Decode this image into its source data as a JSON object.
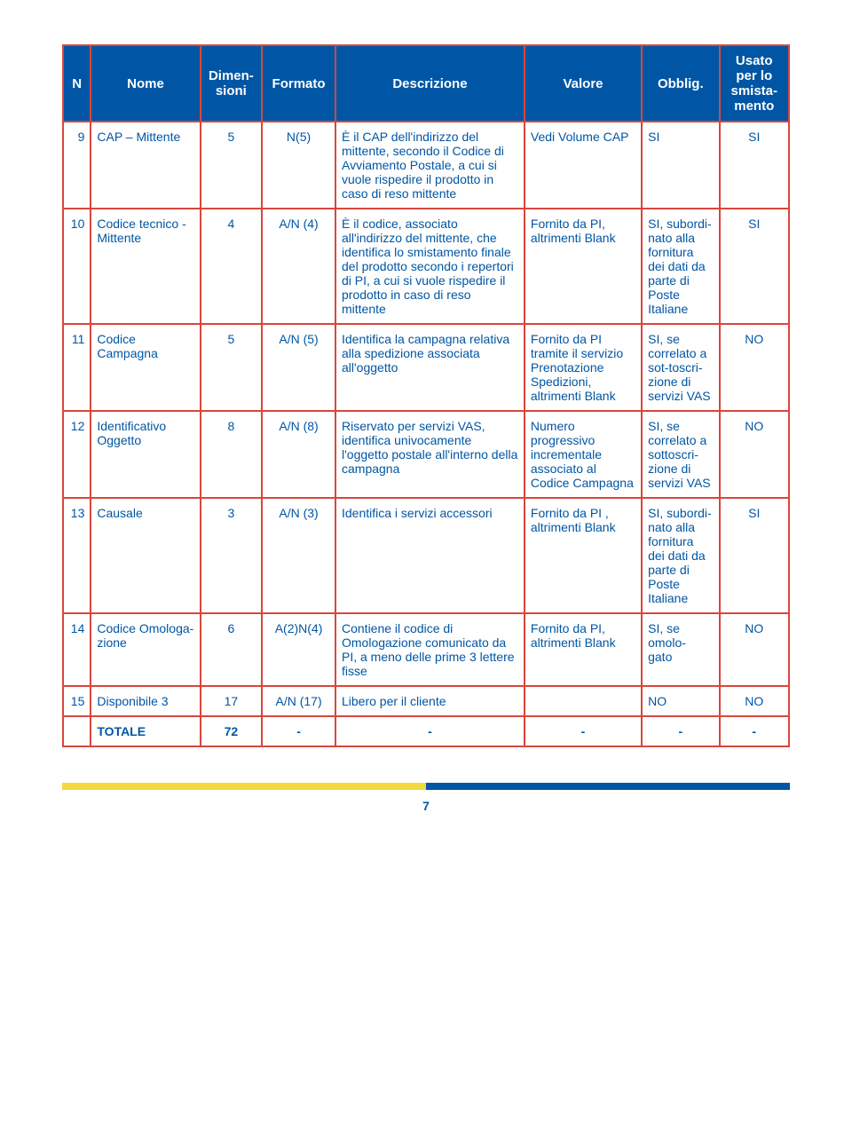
{
  "headers": {
    "n": "N",
    "nome": "Nome",
    "dimen": "Dimen-\nsioni",
    "formato": "Formato",
    "descrizione": "Descrizione",
    "valore": "Valore",
    "obblig": "Obblig.",
    "usato": "Usato per lo smista-\nmento"
  },
  "rows": [
    {
      "n": "9",
      "nome": "CAP – Mittente",
      "dim": "5",
      "fmt": "N(5)",
      "desc": "È il CAP dell'indirizzo del mittente, secondo il Codice di Avviamento Postale, a cui si vuole rispedire il prodotto in caso di reso mittente",
      "val": "Vedi Volume CAP",
      "obb": "SI",
      "usato": "SI"
    },
    {
      "n": "10",
      "nome": "Codice tecnico - Mittente",
      "dim": "4",
      "fmt": "A/N (4)",
      "desc": "È il codice, associato all'indirizzo del mittente, che identifica lo smistamento finale del prodotto secondo i repertori di PI, a cui si vuole rispedire il prodotto in caso di reso mittente",
      "val": "Fornito da PI, altrimenti Blank",
      "obb": "SI, subordi-\nnato alla fornitura dei dati da parte di Poste Italiane",
      "usato": "SI"
    },
    {
      "n": "11",
      "nome": "Codice Campagna",
      "dim": "5",
      "fmt": "A/N (5)",
      "desc": "Identifica la campagna relativa alla spedizione associata all'oggetto",
      "val": "Fornito da PI tramite il servizio Prenotazione Spedizioni, altrimenti Blank",
      "obb": "SI, se correlato a sot-toscri-\nzione di servizi VAS",
      "usato": "NO"
    },
    {
      "n": "12",
      "nome": "Identificativo Oggetto",
      "dim": "8",
      "fmt": "A/N (8)",
      "desc": "Riservato per servizi VAS, identifica univocamente l'oggetto postale all'interno della campagna",
      "val": "Numero progressivo incrementale associato al Codice Campagna",
      "obb": "SI, se correlato a sottoscri-\nzione di servizi VAS",
      "usato": "NO"
    },
    {
      "n": "13",
      "nome": "Causale",
      "dim": "3",
      "fmt": "A/N (3)",
      "desc": "Identifica i servizi accessori",
      "val": "Fornito da PI , altrimenti Blank",
      "obb": "SI, subordi-\nnato alla fornitura dei dati da parte di Poste Italiane",
      "usato": "SI"
    },
    {
      "n": "14",
      "nome": "Codice Omologa-\nzione",
      "dim": "6",
      "fmt": "A(2)N(4)",
      "desc": "Contiene il codice di Omologazione comunicato da PI, a meno delle prime 3 lettere fisse",
      "val": "Fornito da PI, altrimenti Blank",
      "obb": "SI, se omolo-\ngato",
      "usato": "NO"
    },
    {
      "n": "15",
      "nome": "Disponibile 3",
      "dim": "17",
      "fmt": "A/N (17)",
      "desc": "Libero per il cliente",
      "val": "",
      "obb": "NO",
      "usato": "NO"
    }
  ],
  "totale": {
    "label": "TOTALE",
    "dim": "72",
    "fmt": "-",
    "desc": "-",
    "val": "-",
    "obb": "-",
    "usato": "-"
  },
  "pageNumber": "7",
  "colors": {
    "headerBg": "#0056a4",
    "headerText": "#ffffff",
    "border": "#d9463c",
    "bodyText": "#0056a4"
  }
}
